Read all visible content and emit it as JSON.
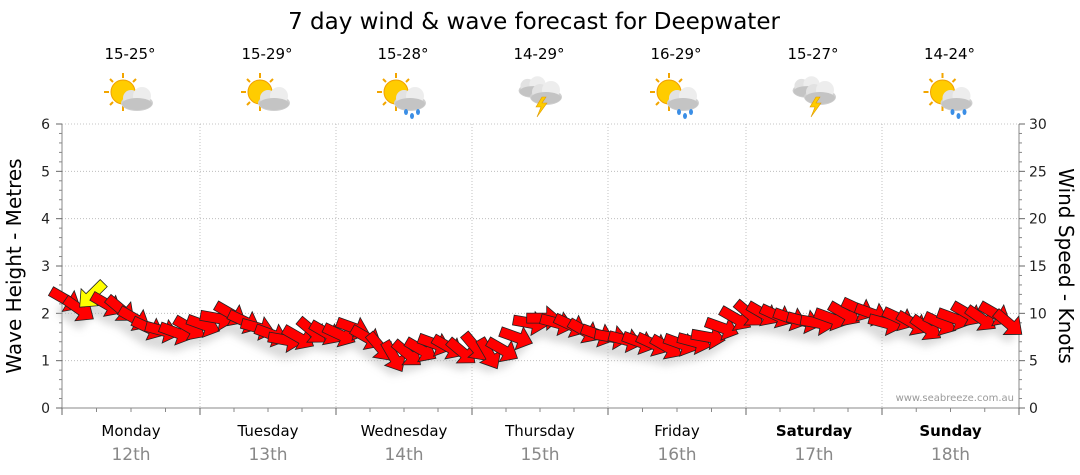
{
  "page": {
    "title": "7 day wind & wave forecast for Deepwater",
    "credit": "www.seabreeze.com.au"
  },
  "days": [
    {
      "day": "Monday",
      "date": "12th",
      "temp": "15-25°",
      "icon": "sun-cloud-icon",
      "bold": false
    },
    {
      "day": "Tuesday",
      "date": "13th",
      "temp": "15-29°",
      "icon": "sun-cloud-icon",
      "bold": false
    },
    {
      "day": "Wednesday",
      "date": "14th",
      "temp": "15-28°",
      "icon": "sun-cloud-rain-icon",
      "bold": false
    },
    {
      "day": "Thursday",
      "date": "15th",
      "temp": "14-29°",
      "icon": "storm-cloud-icon",
      "bold": false
    },
    {
      "day": "Friday",
      "date": "16th",
      "temp": "16-29°",
      "icon": "sun-cloud-rain-icon",
      "bold": false
    },
    {
      "day": "Saturday",
      "date": "17th",
      "temp": "15-27°",
      "icon": "storm-cloud-icon",
      "bold": true
    },
    {
      "day": "Sunday",
      "date": "18th",
      "temp": "14-24°",
      "icon": "sun-cloud-rain-icon",
      "bold": true
    }
  ],
  "chart_data": {
    "type": "line",
    "title": "7 day wind & wave forecast for Deepwater",
    "ylabel_left": "Wave Height - Metres",
    "ylabel_right": "Wind Speed - Knots",
    "ylim_left": [
      0,
      6
    ],
    "ylim_right": [
      0,
      30
    ],
    "yticks_left": [
      "0",
      "1",
      "2",
      "3",
      "4",
      "5",
      "6"
    ],
    "yticks_right": [
      "0",
      "5",
      "10",
      "15",
      "20",
      "25",
      "30"
    ],
    "grid": true,
    "series": [
      {
        "axis": "right",
        "x_days": [
          0.02,
          0.12,
          0.22,
          0.32,
          0.42,
          0.52,
          0.62,
          0.72,
          0.82,
          0.92,
          1.02,
          1.12,
          1.22,
          1.32,
          1.42,
          1.52,
          1.62,
          1.72,
          1.82,
          1.92,
          2.02,
          2.12,
          2.22,
          2.32,
          2.42,
          2.52,
          2.62,
          2.72,
          2.82,
          2.92,
          3.02,
          3.12,
          3.22,
          3.32,
          3.42,
          3.52,
          3.62,
          3.72,
          3.82,
          3.92,
          4.02,
          4.12,
          4.22,
          4.32,
          4.42,
          4.52,
          4.62,
          4.72,
          4.82,
          4.92,
          5.02,
          5.12,
          5.22,
          5.32,
          5.42,
          5.52,
          5.62,
          5.72,
          5.82,
          5.92,
          6.02,
          6.12,
          6.22,
          6.32,
          6.42,
          6.52,
          6.62,
          6.72,
          6.82,
          6.92
        ],
        "values": [
          11.5,
          10.5,
          12.0,
          11.0,
          10.5,
          9.5,
          8.5,
          8.2,
          8.0,
          8.5,
          8.8,
          9.5,
          10.0,
          9.2,
          8.5,
          7.8,
          7.2,
          7.5,
          8.2,
          8.0,
          7.8,
          8.5,
          7.5,
          6.5,
          5.5,
          5.8,
          6.2,
          6.8,
          6.5,
          6.0,
          6.5,
          5.8,
          6.2,
          7.5,
          9.0,
          9.5,
          9.0,
          8.8,
          8.2,
          7.8,
          7.5,
          7.2,
          7.0,
          6.8,
          6.5,
          6.8,
          7.0,
          7.5,
          8.5,
          9.5,
          10.0,
          10.0,
          9.8,
          9.5,
          9.2,
          9.0,
          9.5,
          10.0,
          10.5,
          10.0,
          9.0,
          9.5,
          9.0,
          8.5,
          9.0,
          9.5,
          10.0,
          9.5,
          10.0,
          9.0
        ],
        "direction_deg": [
          300,
          305,
          45,
          300,
          310,
          300,
          295,
          285,
          290,
          300,
          290,
          280,
          300,
          295,
          285,
          290,
          280,
          300,
          310,
          300,
          295,
          290,
          300,
          320,
          330,
          310,
          300,
          290,
          300,
          310,
          320,
          330,
          300,
          290,
          280,
          270,
          285,
          295,
          300,
          290,
          280,
          285,
          290,
          295,
          300,
          290,
          285,
          280,
          290,
          300,
          310,
          300,
          295,
          290,
          285,
          280,
          290,
          300,
          295,
          290,
          285,
          295,
          300,
          305,
          295,
          290,
          300,
          305,
          300,
          310
        ],
        "name": ""
      }
    ]
  }
}
